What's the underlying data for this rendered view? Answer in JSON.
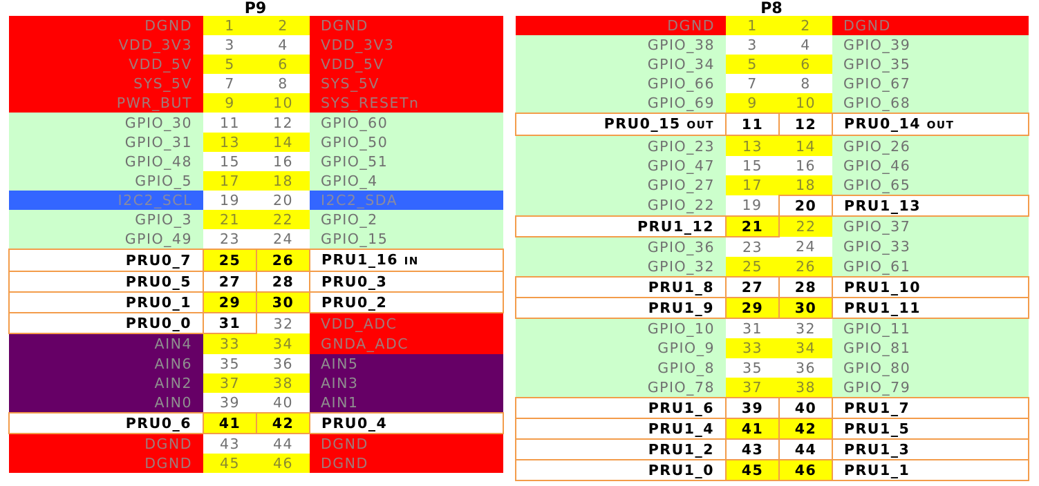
{
  "headers": {
    "p9": "P9",
    "p8": "P8"
  },
  "p9": [
    {
      "l": "DGND",
      "a": "1",
      "b": "2",
      "r": "DGND",
      "lc": "red",
      "rc": "red",
      "na": "yel",
      "nb": "yel"
    },
    {
      "l": "VDD_3V3",
      "a": "3",
      "b": "4",
      "r": "VDD_3V3",
      "lc": "red",
      "rc": "red",
      "na": "wht",
      "nb": "wht"
    },
    {
      "l": "VDD_5V",
      "a": "5",
      "b": "6",
      "r": "VDD_5V",
      "lc": "red",
      "rc": "red",
      "na": "yel",
      "nb": "yel"
    },
    {
      "l": "SYS_5V",
      "a": "7",
      "b": "8",
      "r": "SYS_5V",
      "lc": "red",
      "rc": "red",
      "na": "wht",
      "nb": "wht"
    },
    {
      "l": "PWR_BUT",
      "a": "9",
      "b": "10",
      "r": "SYS_RESETn",
      "lc": "red",
      "rc": "red",
      "na": "yel",
      "nb": "yel"
    },
    {
      "l": "GPIO_30",
      "a": "11",
      "b": "12",
      "r": "GPIO_60",
      "lc": "grn",
      "rc": "grn",
      "na": "wht",
      "nb": "wht"
    },
    {
      "l": "GPIO_31",
      "a": "13",
      "b": "14",
      "r": "GPIO_50",
      "lc": "grn",
      "rc": "grn",
      "na": "yel",
      "nb": "yel"
    },
    {
      "l": "GPIO_48",
      "a": "15",
      "b": "16",
      "r": "GPIO_51",
      "lc": "grn",
      "rc": "grn",
      "na": "wht",
      "nb": "wht"
    },
    {
      "l": "GPIO_5",
      "a": "17",
      "b": "18",
      "r": "GPIO_4",
      "lc": "grn",
      "rc": "grn",
      "na": "yel",
      "nb": "yel"
    },
    {
      "l": "I2C2_SCL",
      "a": "19",
      "b": "20",
      "r": "I2C2_SDA",
      "lc": "blu",
      "rc": "blu",
      "na": "wht",
      "nb": "wht"
    },
    {
      "l": "GPIO_3",
      "a": "21",
      "b": "22",
      "r": "GPIO_2",
      "lc": "grn",
      "rc": "grn",
      "na": "yel",
      "nb": "yel"
    },
    {
      "l": "GPIO_49",
      "a": "23",
      "b": "24",
      "r": "GPIO_15",
      "lc": "grn",
      "rc": "grn",
      "na": "wht",
      "nb": "wht"
    },
    {
      "l": "PRU0_7",
      "a": "25",
      "b": "26",
      "r": "PRU1_16",
      "rs": "IN",
      "lc": "pru",
      "rc": "pru",
      "na": "yel",
      "nb": "yel"
    },
    {
      "l": "PRU0_5",
      "a": "27",
      "b": "28",
      "r": "PRU0_3",
      "lc": "pru",
      "rc": "pru",
      "na": "wht",
      "nb": "wht"
    },
    {
      "l": "PRU0_1",
      "a": "29",
      "b": "30",
      "r": "PRU0_2",
      "lc": "pru",
      "rc": "pru",
      "na": "yel",
      "nb": "yel"
    },
    {
      "l": "PRU0_0",
      "a": "31",
      "b": "32",
      "r": "VDD_ADC",
      "lc": "pru",
      "rc": "red",
      "na": "wht",
      "nb": "wht"
    },
    {
      "l": "AIN4",
      "a": "33",
      "b": "34",
      "r": "GNDA_ADC",
      "lc": "pur",
      "rc": "red",
      "na": "yel",
      "nb": "yel"
    },
    {
      "l": "AIN6",
      "a": "35",
      "b": "36",
      "r": "AIN5",
      "lc": "pur",
      "rc": "pur",
      "na": "wht",
      "nb": "wht"
    },
    {
      "l": "AIN2",
      "a": "37",
      "b": "38",
      "r": "AIN3",
      "lc": "pur",
      "rc": "pur",
      "na": "yel",
      "nb": "yel"
    },
    {
      "l": "AIN0",
      "a": "39",
      "b": "40",
      "r": "AIN1",
      "lc": "pur",
      "rc": "pur",
      "na": "wht",
      "nb": "wht"
    },
    {
      "l": "PRU0_6",
      "a": "41",
      "b": "42",
      "r": "PRU0_4",
      "lc": "pru",
      "rc": "pru",
      "na": "yel",
      "nb": "yel"
    },
    {
      "l": "DGND",
      "a": "43",
      "b": "44",
      "r": "DGND",
      "lc": "red",
      "rc": "red",
      "na": "wht",
      "nb": "wht"
    },
    {
      "l": "DGND",
      "a": "45",
      "b": "46",
      "r": "DGND",
      "lc": "red",
      "rc": "red",
      "na": "yel",
      "nb": "yel"
    }
  ],
  "p8": [
    {
      "l": "DGND",
      "a": "1",
      "b": "2",
      "r": "DGND",
      "lc": "red",
      "rc": "red",
      "na": "yel",
      "nb": "yel"
    },
    {
      "l": "GPIO_38",
      "a": "3",
      "b": "4",
      "r": "GPIO_39",
      "lc": "grn",
      "rc": "grn",
      "na": "wht",
      "nb": "wht"
    },
    {
      "l": "GPIO_34",
      "a": "5",
      "b": "6",
      "r": "GPIO_35",
      "lc": "grn",
      "rc": "grn",
      "na": "yel",
      "nb": "yel"
    },
    {
      "l": "GPIO_66",
      "a": "7",
      "b": "8",
      "r": "GPIO_67",
      "lc": "grn",
      "rc": "grn",
      "na": "wht",
      "nb": "wht"
    },
    {
      "l": "GPIO_69",
      "a": "9",
      "b": "10",
      "r": "GPIO_68",
      "lc": "grn",
      "rc": "grn",
      "na": "yel",
      "nb": "yel"
    },
    {
      "l": "PRU0_15",
      "ls": "OUT",
      "a": "11",
      "b": "12",
      "r": "PRU0_14",
      "rs": "OUT",
      "lc": "pru",
      "rc": "pru",
      "na": "wht",
      "nb": "wht"
    },
    {
      "l": "GPIO_23",
      "a": "13",
      "b": "14",
      "r": "GPIO_26",
      "lc": "grn",
      "rc": "grn",
      "na": "yel",
      "nb": "yel"
    },
    {
      "l": "GPIO_47",
      "a": "15",
      "b": "16",
      "r": "GPIO_46",
      "lc": "grn",
      "rc": "grn",
      "na": "wht",
      "nb": "wht"
    },
    {
      "l": "GPIO_27",
      "a": "17",
      "b": "18",
      "r": "GPIO_65",
      "lc": "grn",
      "rc": "grn",
      "na": "yel",
      "nb": "yel"
    },
    {
      "l": "GPIO_22",
      "a": "19",
      "b": "20",
      "r": "PRU1_13",
      "lc": "grn",
      "rc": "pru",
      "na": "wht",
      "nb": "wht"
    },
    {
      "l": "PRU1_12",
      "a": "21",
      "b": "22",
      "r": "GPIO_37",
      "lc": "pru",
      "rc": "grn",
      "na": "yel",
      "nb": "yel"
    },
    {
      "l": "GPIO_36",
      "a": "23",
      "b": "24",
      "r": "GPIO_33",
      "lc": "grn",
      "rc": "grn",
      "na": "wht",
      "nb": "wht"
    },
    {
      "l": "GPIO_32",
      "a": "25",
      "b": "26",
      "r": "GPIO_61",
      "lc": "grn",
      "rc": "grn",
      "na": "yel",
      "nb": "yel"
    },
    {
      "l": "PRU1_8",
      "a": "27",
      "b": "28",
      "r": "PRU1_10",
      "lc": "pru",
      "rc": "pru",
      "na": "wht",
      "nb": "wht"
    },
    {
      "l": "PRU1_9",
      "a": "29",
      "b": "30",
      "r": "PRU1_11",
      "lc": "pru",
      "rc": "pru",
      "na": "yel",
      "nb": "yel"
    },
    {
      "l": "GPIO_10",
      "a": "31",
      "b": "32",
      "r": "GPIO_11",
      "lc": "grn",
      "rc": "grn",
      "na": "wht",
      "nb": "wht"
    },
    {
      "l": "GPIO_9",
      "a": "33",
      "b": "34",
      "r": "GPIO_81",
      "lc": "grn",
      "rc": "grn",
      "na": "yel",
      "nb": "yel"
    },
    {
      "l": "GPIO_8",
      "a": "35",
      "b": "36",
      "r": "GPIO_80",
      "lc": "grn",
      "rc": "grn",
      "na": "wht",
      "nb": "wht"
    },
    {
      "l": "GPIO_78",
      "a": "37",
      "b": "38",
      "r": "GPIO_79",
      "lc": "grn",
      "rc": "grn",
      "na": "yel",
      "nb": "yel"
    },
    {
      "l": "PRU1_6",
      "a": "39",
      "b": "40",
      "r": "PRU1_7",
      "lc": "pru",
      "rc": "pru",
      "na": "wht",
      "nb": "wht"
    },
    {
      "l": "PRU1_4",
      "a": "41",
      "b": "42",
      "r": "PRU1_5",
      "lc": "pru",
      "rc": "pru",
      "na": "yel",
      "nb": "yel"
    },
    {
      "l": "PRU1_2",
      "a": "43",
      "b": "44",
      "r": "PRU1_3",
      "lc": "pru",
      "rc": "pru",
      "na": "wht",
      "nb": "wht"
    },
    {
      "l": "PRU1_0",
      "a": "45",
      "b": "46",
      "r": "PRU1_1",
      "lc": "pru",
      "rc": "pru",
      "na": "yel",
      "nb": "yel"
    }
  ]
}
